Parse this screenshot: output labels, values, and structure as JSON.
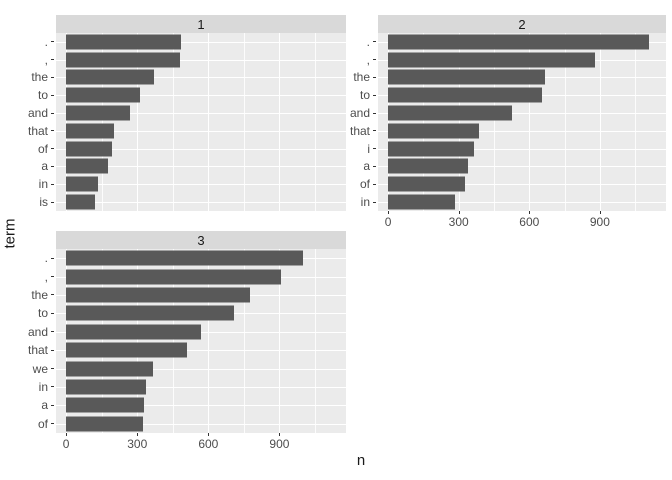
{
  "chart_data": {
    "type": "bar",
    "orientation": "horizontal",
    "title": "",
    "xlabel": "n",
    "ylabel": "term",
    "x_ticks": [
      0,
      300,
      600,
      900
    ],
    "x_minor_ticks": [
      150,
      450,
      750,
      1050
    ],
    "xlim": [
      0,
      1180
    ],
    "grid": true,
    "legend": false,
    "facets": [
      {
        "label": "1",
        "show_x_axis": false,
        "terms": [
          ".",
          ",",
          "the",
          "to",
          "and",
          "that",
          "of",
          "a",
          "in",
          "is"
        ],
        "values": [
          485,
          480,
          370,
          310,
          270,
          200,
          195,
          175,
          135,
          120
        ]
      },
      {
        "label": "2",
        "show_x_axis": true,
        "terms": [
          ".",
          ",",
          "the",
          "to",
          "and",
          "that",
          "i",
          "a",
          "of",
          "in"
        ],
        "values": [
          1110,
          880,
          665,
          655,
          525,
          385,
          365,
          340,
          325,
          285
        ]
      },
      {
        "label": "3",
        "show_x_axis": true,
        "terms": [
          ".",
          ",",
          "the",
          "to",
          "and",
          "that",
          "we",
          "in",
          "a",
          "of"
        ],
        "values": [
          1000,
          905,
          775,
          710,
          570,
          510,
          365,
          335,
          330,
          325
        ]
      }
    ],
    "colors": {
      "bar": "#595959",
      "panel_bg": "#EBEBEB",
      "strip_bg": "#D9D9D9",
      "grid": "#FFFFFF",
      "axis_text": "#4D4D4D",
      "strip_text": "#1A1A1A",
      "axis_title": "#1A1A1A",
      "background": "#FFFFFF"
    }
  }
}
